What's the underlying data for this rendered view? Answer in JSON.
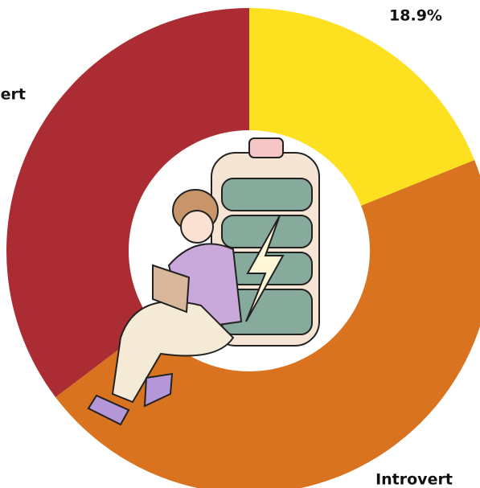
{
  "chart_data": {
    "type": "donut",
    "categories": [
      null,
      "Introvert",
      "Extrovert"
    ],
    "values": [
      18.9,
      45.8,
      35.3
    ],
    "value_labels": [
      "18.9%",
      null,
      null
    ],
    "colors": [
      "#fde01f",
      "#d97320",
      "#ab2d33"
    ]
  }
}
